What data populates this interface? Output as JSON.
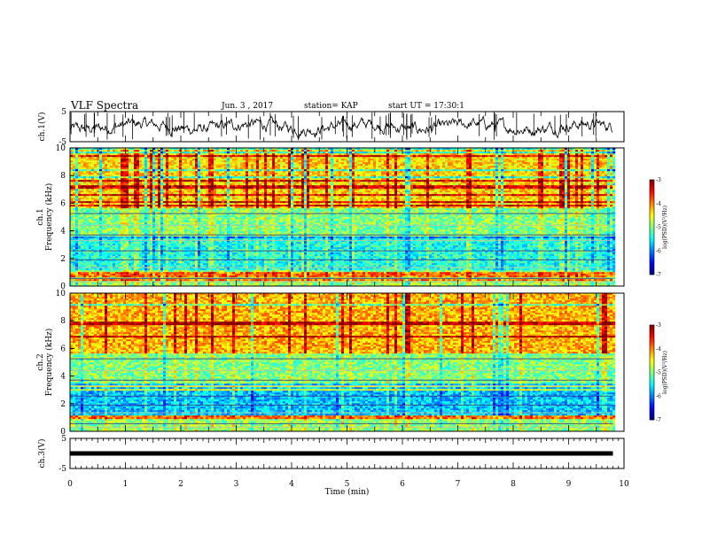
{
  "header": {
    "title": "VLF Spectra",
    "date": "Jun. 3 , 2017",
    "station": "station= KAP",
    "start": "start UT = 17:30:1"
  },
  "chart_data": [
    {
      "type": "line",
      "panel": "ch1-waveform",
      "ylabel": "ch.1(V)",
      "ylim": [
        -5,
        5
      ],
      "yticks": [
        "5",
        "-5"
      ],
      "xlim": [
        0,
        10
      ],
      "series": [
        {
          "x": [
            0,
            9.8
          ],
          "y": [
            0,
            0
          ]
        }
      ]
    },
    {
      "type": "heatmap",
      "panel": "ch1-spectrogram",
      "ylabel_lines": [
        "ch.1",
        "Frequency (kHz)"
      ],
      "ylim": [
        0,
        10
      ],
      "yticks": [
        "0",
        "2",
        "4",
        "6",
        "8",
        "10"
      ],
      "xlim": [
        0,
        10
      ],
      "x_data_end": 9.8,
      "colorbar": {
        "label": "log(PSD)(V²/Hz)",
        "range": [
          -7,
          -3
        ],
        "ticks": [
          "-3",
          "-4",
          "-5",
          "-6",
          "-7"
        ]
      }
    },
    {
      "type": "heatmap",
      "panel": "ch2-spectrogram",
      "ylabel_lines": [
        "ch.2",
        "Frequency (kHz)"
      ],
      "ylim": [
        0,
        10
      ],
      "yticks": [
        "0",
        "2",
        "4",
        "6",
        "8",
        "10"
      ],
      "xlim": [
        0,
        10
      ],
      "x_data_end": 9.8,
      "colorbar": {
        "label": "log(PSD)(V²/Hz)",
        "range": [
          -7,
          -3
        ],
        "ticks": [
          "-3",
          "-4",
          "-5",
          "-6",
          "-7"
        ]
      }
    },
    {
      "type": "line",
      "panel": "ch3-waveform",
      "ylabel": "ch.3(V)",
      "ylim": [
        -5,
        5
      ],
      "yticks": [
        "5",
        "-5"
      ],
      "xlim": [
        0,
        10
      ],
      "series": [
        {
          "x": [
            0,
            9.8
          ],
          "y": [
            0,
            0
          ]
        }
      ]
    }
  ],
  "x_axis": {
    "label": "Time (min)",
    "ticks": [
      "0",
      "1",
      "2",
      "3",
      "4",
      "5",
      "6",
      "7",
      "8",
      "9",
      "10"
    ]
  }
}
